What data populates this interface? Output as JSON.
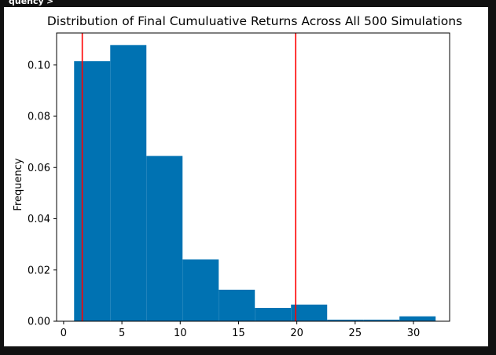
{
  "cell_output_label": "quency'>",
  "chart_data": {
    "type": "bar",
    "title": "Distribution of Final Cumuluative Returns Across All 500 Simulations",
    "xlabel": "",
    "ylabel": "Frequency",
    "xlim": [
      -0.6,
      33.1
    ],
    "ylim": [
      0,
      0.1125
    ],
    "xticks": [
      0,
      5,
      10,
      15,
      20,
      25,
      30
    ],
    "yticks": [
      0.0,
      0.02,
      0.04,
      0.06,
      0.08,
      0.1
    ],
    "ytick_labels": [
      "0.00",
      "0.02",
      "0.04",
      "0.06",
      "0.08",
      "0.10"
    ],
    "bar_color": "#0072b2",
    "grid": false,
    "bins": [
      {
        "x0": 0.9,
        "x1": 4.0,
        "value": 0.1015
      },
      {
        "x0": 4.0,
        "x1": 7.1,
        "value": 0.1078
      },
      {
        "x0": 7.1,
        "x1": 10.2,
        "value": 0.0645
      },
      {
        "x0": 10.2,
        "x1": 13.3,
        "value": 0.0241
      },
      {
        "x0": 13.3,
        "x1": 16.4,
        "value": 0.0123
      },
      {
        "x0": 16.4,
        "x1": 19.5,
        "value": 0.0052
      },
      {
        "x0": 19.5,
        "x1": 22.6,
        "value": 0.0065
      },
      {
        "x0": 22.6,
        "x1": 25.7,
        "value": 0.0006
      },
      {
        "x0": 25.7,
        "x1": 28.8,
        "value": 0.0006
      },
      {
        "x0": 28.8,
        "x1": 31.9,
        "value": 0.0019
      }
    ],
    "vlines": [
      {
        "x": 1.6,
        "color": "#ff0000"
      },
      {
        "x": 19.9,
        "color": "#ff0000"
      }
    ]
  }
}
